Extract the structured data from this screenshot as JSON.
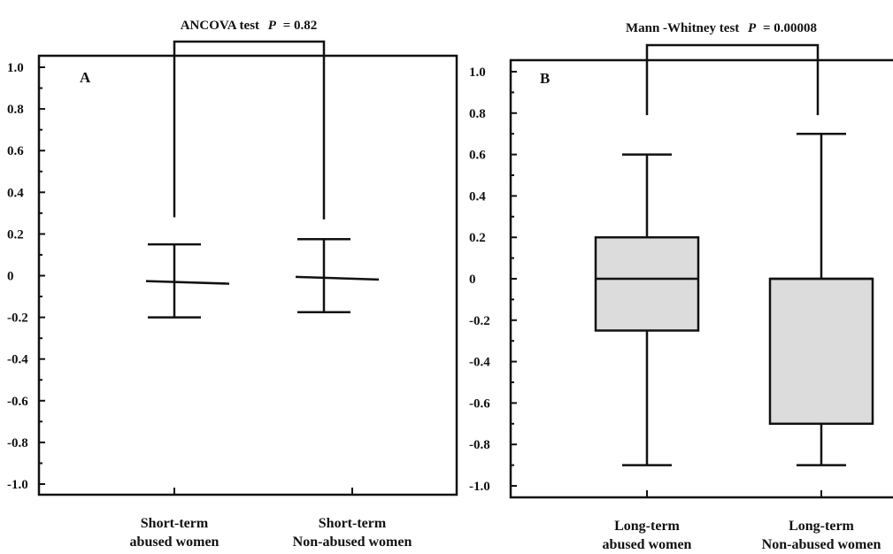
{
  "chart_data": [
    {
      "type": "errorbar",
      "panel": "A",
      "title_prefix": "ANCOVA test",
      "title_p_label": "P",
      "title_p_value": "= 0.82",
      "ylim": [
        -1.05,
        1.05
      ],
      "y_ticks": [
        "1.0",
        "0.8",
        "0.6",
        "0.4",
        "0.2",
        "0",
        "-0.2",
        "-0.4",
        "-0.6",
        "-0.8",
        "-1.0"
      ],
      "y_tick_values": [
        1.0,
        0.8,
        0.6,
        0.4,
        0.2,
        0,
        -0.2,
        -0.4,
        -0.6,
        -0.8,
        -1.0
      ],
      "categories": [
        {
          "line1": "Short-term",
          "line2": "abused women"
        },
        {
          "line1": "Short-term",
          "line2": "Non-abused women"
        }
      ],
      "series": [
        {
          "mean": -0.03,
          "upper": 0.15,
          "lower": -0.2
        },
        {
          "mean": -0.01,
          "upper": 0.175,
          "lower": -0.175
        }
      ],
      "bracket_bottom": 0.28,
      "bracket_bottom_right": 0.27
    },
    {
      "type": "box",
      "panel": "B",
      "title_prefix": "Mann -Whitney test",
      "title_p_label": "P",
      "title_p_value": "= 0.00008",
      "ylim": [
        -1.05,
        1.05
      ],
      "y_ticks": [
        "1.0",
        "0.8",
        "0.6",
        "0.4",
        "0.2",
        "0",
        "-0.2",
        "-0.4",
        "-0.6",
        "-0.8",
        "-1.0"
      ],
      "y_tick_values": [
        1.0,
        0.8,
        0.6,
        0.4,
        0.2,
        0,
        -0.2,
        -0.4,
        -0.6,
        -0.8,
        -1.0
      ],
      "categories": [
        {
          "line1": "Long-term",
          "line2": "abused women"
        },
        {
          "line1": "Long-term",
          "line2": "Non-abused women"
        }
      ],
      "series": [
        {
          "whisker_high": 0.6,
          "q3": 0.2,
          "median": 0.0,
          "q1": -0.25,
          "whisker_low": -0.9
        },
        {
          "whisker_high": 0.7,
          "q3": 0.0,
          "median": 0.0,
          "q1": -0.7,
          "whisker_low": -0.9
        }
      ],
      "bracket_bottom": 0.79
    }
  ]
}
